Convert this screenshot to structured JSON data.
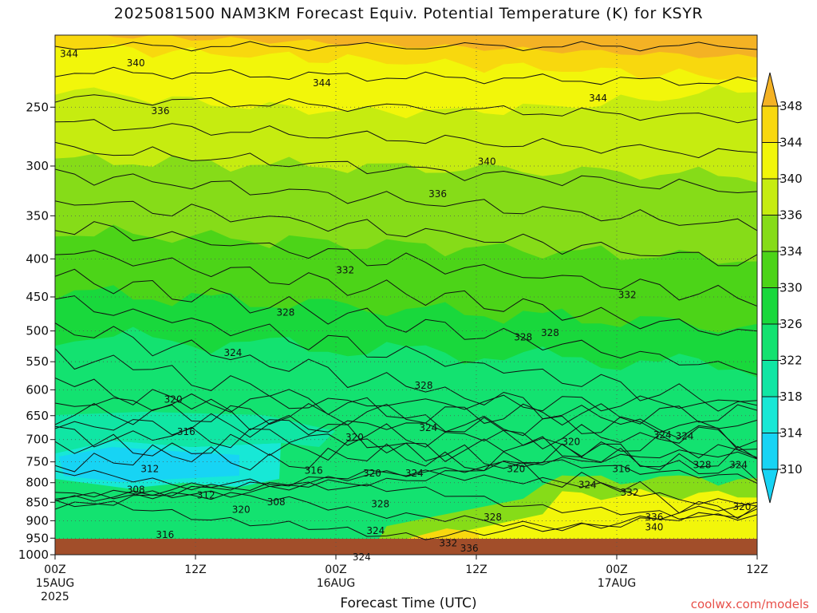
{
  "chart_data": {
    "type": "heatmap",
    "title": "2025081500 NAM3KM Forecast Equiv. Potential Temperature (K) for KSYR",
    "xlabel": "Forecast Time (UTC)",
    "ylabel": "",
    "y_scale": "log",
    "y_inverted": true,
    "ylim": [
      1000,
      200
    ],
    "xlim": [
      0,
      60
    ],
    "x_unit": "hours from 2025081500",
    "yticks": [
      250,
      300,
      350,
      400,
      450,
      500,
      550,
      600,
      650,
      700,
      750,
      800,
      850,
      900,
      950,
      1000
    ],
    "xticks": [
      {
        "hour": 0,
        "label": "00Z",
        "sub1": "15AUG",
        "sub2": "2025"
      },
      {
        "hour": 12,
        "label": "12Z",
        "sub1": "",
        "sub2": ""
      },
      {
        "hour": 24,
        "label": "00Z",
        "sub1": "16AUG",
        "sub2": ""
      },
      {
        "hour": 36,
        "label": "12Z",
        "sub1": "",
        "sub2": ""
      },
      {
        "hour": 48,
        "label": "00Z",
        "sub1": "17AUG",
        "sub2": ""
      },
      {
        "hour": 60,
        "label": "12Z",
        "sub1": "",
        "sub2": ""
      }
    ],
    "grid": true,
    "colorbar": {
      "levels": [
        310,
        314,
        318,
        322,
        326,
        330,
        334,
        336,
        340,
        344,
        348
      ],
      "colors": [
        "#17d4f4",
        "#17e8d6",
        "#10e6a4",
        "#13e270",
        "#19d83c",
        "#4cd418",
        "#86dc18",
        "#c6ec10",
        "#f2f60a",
        "#f8d80e",
        "#f4b224"
      ],
      "placement": "right"
    },
    "contour_labels": [
      {
        "t": 1.2,
        "p": 212,
        "v": 344
      },
      {
        "t": 6.9,
        "p": 218,
        "v": 340
      },
      {
        "t": 22.8,
        "p": 232,
        "v": 344
      },
      {
        "t": 9.0,
        "p": 253,
        "v": 336
      },
      {
        "t": 46.4,
        "p": 243,
        "v": 344
      },
      {
        "t": 36.9,
        "p": 296,
        "v": 340
      },
      {
        "t": 32.7,
        "p": 327,
        "v": 336
      },
      {
        "t": 24.8,
        "p": 414,
        "v": 332
      },
      {
        "t": 48.9,
        "p": 447,
        "v": 332
      },
      {
        "t": 19.7,
        "p": 472,
        "v": 328
      },
      {
        "t": 40.0,
        "p": 510,
        "v": 328
      },
      {
        "t": 42.3,
        "p": 503,
        "v": 328
      },
      {
        "t": 15.2,
        "p": 535,
        "v": 324
      },
      {
        "t": 31.5,
        "p": 592,
        "v": 328
      },
      {
        "t": 10.1,
        "p": 618,
        "v": 320
      },
      {
        "t": 11.2,
        "p": 683,
        "v": 316
      },
      {
        "t": 31.9,
        "p": 675,
        "v": 324
      },
      {
        "t": 25.6,
        "p": 695,
        "v": 320
      },
      {
        "t": 44.1,
        "p": 705,
        "v": 320
      },
      {
        "t": 51.9,
        "p": 690,
        "v": 324
      },
      {
        "t": 53.8,
        "p": 693,
        "v": 324
      },
      {
        "t": 55.3,
        "p": 757,
        "v": 328
      },
      {
        "t": 58.4,
        "p": 757,
        "v": 324
      },
      {
        "t": 8.1,
        "p": 767,
        "v": 312
      },
      {
        "t": 22.1,
        "p": 770,
        "v": 316
      },
      {
        "t": 27.1,
        "p": 777,
        "v": 320
      },
      {
        "t": 30.7,
        "p": 777,
        "v": 324
      },
      {
        "t": 39.4,
        "p": 767,
        "v": 320
      },
      {
        "t": 48.4,
        "p": 767,
        "v": 316
      },
      {
        "t": 6.9,
        "p": 818,
        "v": 308
      },
      {
        "t": 12.9,
        "p": 832,
        "v": 312
      },
      {
        "t": 15.9,
        "p": 870,
        "v": 320
      },
      {
        "t": 18.9,
        "p": 849,
        "v": 308
      },
      {
        "t": 27.8,
        "p": 855,
        "v": 328
      },
      {
        "t": 45.5,
        "p": 805,
        "v": 324
      },
      {
        "t": 49.1,
        "p": 825,
        "v": 332
      },
      {
        "t": 37.4,
        "p": 890,
        "v": 328
      },
      {
        "t": 51.2,
        "p": 890,
        "v": 336
      },
      {
        "t": 51.2,
        "p": 918,
        "v": 340
      },
      {
        "t": 58.7,
        "p": 862,
        "v": 320
      },
      {
        "t": 9.4,
        "p": 940,
        "v": 316
      },
      {
        "t": 27.4,
        "p": 928,
        "v": 324
      },
      {
        "t": 33.6,
        "p": 965,
        "v": 332
      },
      {
        "t": 35.4,
        "p": 980,
        "v": 336
      },
      {
        "t": 26.2,
        "p": 1008,
        "v": 324
      }
    ]
  },
  "credit": "coolwx.com/models"
}
